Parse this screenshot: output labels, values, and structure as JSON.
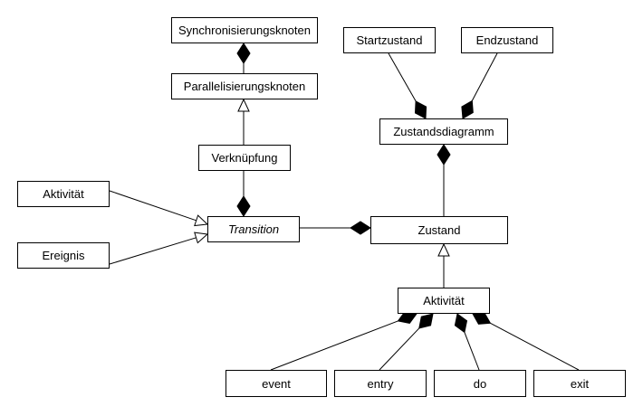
{
  "diagram": {
    "nodes": {
      "synchronisierungsknoten": "Synchronisierungsknoten",
      "parallelisierungsknoten": "Parallelisierungsknoten",
      "verknuepfung": "Verknüpfung",
      "aktivitaet_left": "Aktivität",
      "ereignis": "Ereignis",
      "transition": "Transition",
      "startzustand": "Startzustand",
      "endzustand": "Endzustand",
      "zustandsdiagramm": "Zustandsdiagramm",
      "zustand": "Zustand",
      "aktivitaet_bottom": "Aktivität",
      "event": "event",
      "entry": "entry",
      "do": "do",
      "exit": "exit"
    },
    "edges": [
      {
        "from": "parallelisierungsknoten",
        "to": "synchronisierungsknoten",
        "type": "composition"
      },
      {
        "from": "verknuepfung",
        "to": "parallelisierungsknoten",
        "type": "generalization"
      },
      {
        "from": "verknuepfung",
        "to": "transition",
        "type": "composition"
      },
      {
        "from": "aktivitaet_left",
        "to": "transition",
        "type": "generalization"
      },
      {
        "from": "ereignis",
        "to": "transition",
        "type": "generalization"
      },
      {
        "from": "transition",
        "to": "zustand",
        "type": "composition"
      },
      {
        "from": "startzustand",
        "to": "zustandsdiagramm",
        "type": "composition"
      },
      {
        "from": "endzustand",
        "to": "zustandsdiagramm",
        "type": "composition"
      },
      {
        "from": "zustand",
        "to": "zustandsdiagramm",
        "type": "composition"
      },
      {
        "from": "aktivitaet_bottom",
        "to": "zustand",
        "type": "generalization"
      },
      {
        "from": "event",
        "to": "aktivitaet_bottom",
        "type": "composition"
      },
      {
        "from": "entry",
        "to": "aktivitaet_bottom",
        "type": "composition"
      },
      {
        "from": "do",
        "to": "aktivitaet_bottom",
        "type": "composition"
      },
      {
        "from": "exit",
        "to": "aktivitaet_bottom",
        "type": "composition"
      }
    ]
  }
}
